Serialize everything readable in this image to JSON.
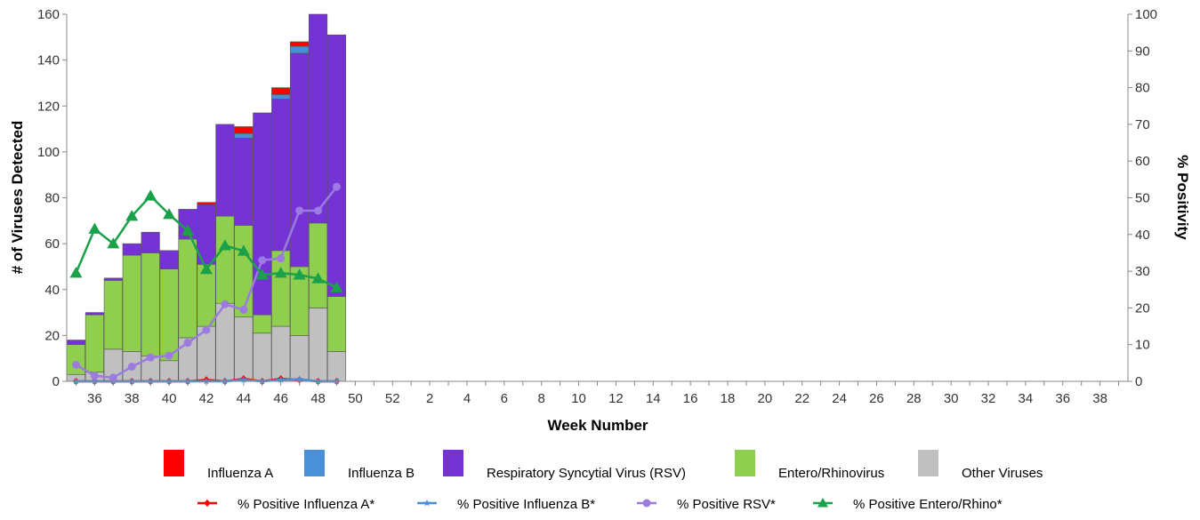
{
  "chart_data": {
    "type": "bar",
    "stacked": true,
    "xlabel": "Week Number",
    "ylabel": "# of Viruses Detected",
    "y2label": "% Positivity",
    "ylim": [
      0,
      160
    ],
    "y2lim": [
      0,
      100
    ],
    "yticks": [
      0,
      20,
      40,
      60,
      80,
      100,
      120,
      140,
      160
    ],
    "y2ticks": [
      0,
      10,
      20,
      30,
      40,
      50,
      60,
      70,
      80,
      90,
      100
    ],
    "x_week_sequence": [
      35,
      36,
      37,
      38,
      39,
      40,
      41,
      42,
      43,
      44,
      45,
      46,
      47,
      48,
      49,
      50,
      51,
      52,
      1,
      2,
      3,
      4,
      5,
      6,
      7,
      8,
      9,
      10,
      11,
      12,
      13,
      14,
      15,
      16,
      17,
      18,
      19,
      20,
      21,
      22,
      23,
      24,
      25,
      26,
      27,
      28,
      29,
      30,
      31,
      32,
      33,
      34,
      35,
      36,
      37,
      38,
      39
    ],
    "x_tick_labels": [
      "36",
      "38",
      "40",
      "42",
      "44",
      "46",
      "48",
      "50",
      "52",
      "2",
      "4",
      "6",
      "8",
      "10",
      "12",
      "14",
      "16",
      "18",
      "20",
      "22",
      "24",
      "26",
      "28",
      "30",
      "32",
      "34",
      "36",
      "38"
    ],
    "grid": false,
    "legend_position": "bottom",
    "bar_weeks": [
      35,
      36,
      37,
      38,
      39,
      40,
      41,
      42,
      43,
      44,
      45,
      46,
      47,
      48,
      49
    ],
    "bar_series": [
      {
        "name": "Other Viruses",
        "color": "#c0c0c0",
        "values": [
          3,
          4,
          14,
          13,
          11,
          9,
          19,
          24,
          34,
          28,
          21,
          24,
          20,
          32,
          13
        ]
      },
      {
        "name": "Entero/Rhinovirus",
        "color": "#8fce4f",
        "values": [
          13,
          25,
          30,
          42,
          45,
          40,
          43,
          27,
          38,
          40,
          8,
          33,
          30,
          37,
          24
        ]
      },
      {
        "name": "Respiratory Syncytial Virus (RSV)",
        "color": "#7533d6",
        "values": [
          2,
          1,
          1,
          5,
          9,
          8,
          13,
          26,
          40,
          38,
          88,
          66,
          93,
          91,
          114
        ]
      },
      {
        "name": "Influenza B",
        "color": "#4a90d9",
        "values": [
          0,
          0,
          0,
          0,
          0,
          0,
          0,
          0,
          0,
          2,
          0,
          2,
          3,
          0,
          0
        ]
      },
      {
        "name": "Influenza A",
        "color": "#ff0000",
        "values": [
          0,
          0,
          0,
          0,
          0,
          0,
          0,
          1,
          0,
          3,
          0,
          3,
          2,
          0,
          0
        ]
      }
    ],
    "line_series": [
      {
        "name": "% Positive Influenza A*",
        "color": "#ff0000",
        "marker": "diamond",
        "weeks": [
          35,
          36,
          37,
          38,
          39,
          40,
          41,
          42,
          43,
          44,
          45,
          46,
          47,
          48,
          49
        ],
        "values": [
          0,
          0,
          0,
          0,
          0,
          0,
          0,
          0.4,
          0,
          0.7,
          0,
          0.7,
          0.4,
          0,
          0
        ]
      },
      {
        "name": "% Positive Influenza B*",
        "color": "#4a90d9",
        "marker": "star",
        "weeks": [
          35,
          36,
          37,
          38,
          39,
          40,
          41,
          42,
          43,
          44,
          45,
          46,
          47,
          48,
          49
        ],
        "values": [
          0,
          0,
          0,
          0,
          0,
          0,
          0,
          0,
          0,
          0.4,
          0,
          0.4,
          0.6,
          0,
          0
        ]
      },
      {
        "name": "% Positive RSV*",
        "color": "#9b7be0",
        "marker": "circle",
        "weeks": [
          35,
          36,
          37,
          38,
          39,
          40,
          41,
          42,
          43,
          44,
          45,
          46,
          47,
          48,
          49
        ],
        "values": [
          4.5,
          1.5,
          1,
          4,
          6.5,
          7,
          10.5,
          14,
          21,
          19.5,
          33,
          33.5,
          46.5,
          46.5,
          53
        ]
      },
      {
        "name": "% Positive Entero/Rhino*",
        "color": "#1aa14a",
        "marker": "triangle",
        "weeks": [
          35,
          36,
          37,
          38,
          39,
          40,
          41,
          42,
          43,
          44,
          45,
          46,
          47,
          48,
          49
        ],
        "values": [
          29.5,
          41.5,
          37.5,
          45,
          50.5,
          45.5,
          41,
          30.5,
          37,
          35.5,
          29,
          29.5,
          29,
          28,
          25.5
        ]
      }
    ],
    "legend_rows": [
      [
        "Influenza A",
        "Influenza B",
        "Respiratory Syncytial Virus (RSV)",
        "Entero/Rhinovirus",
        "Other Viruses"
      ],
      [
        "% Positive Influenza A*",
        "% Positive Influenza B*",
        "% Positive RSV*",
        "% Positive Entero/Rhino*"
      ]
    ]
  }
}
